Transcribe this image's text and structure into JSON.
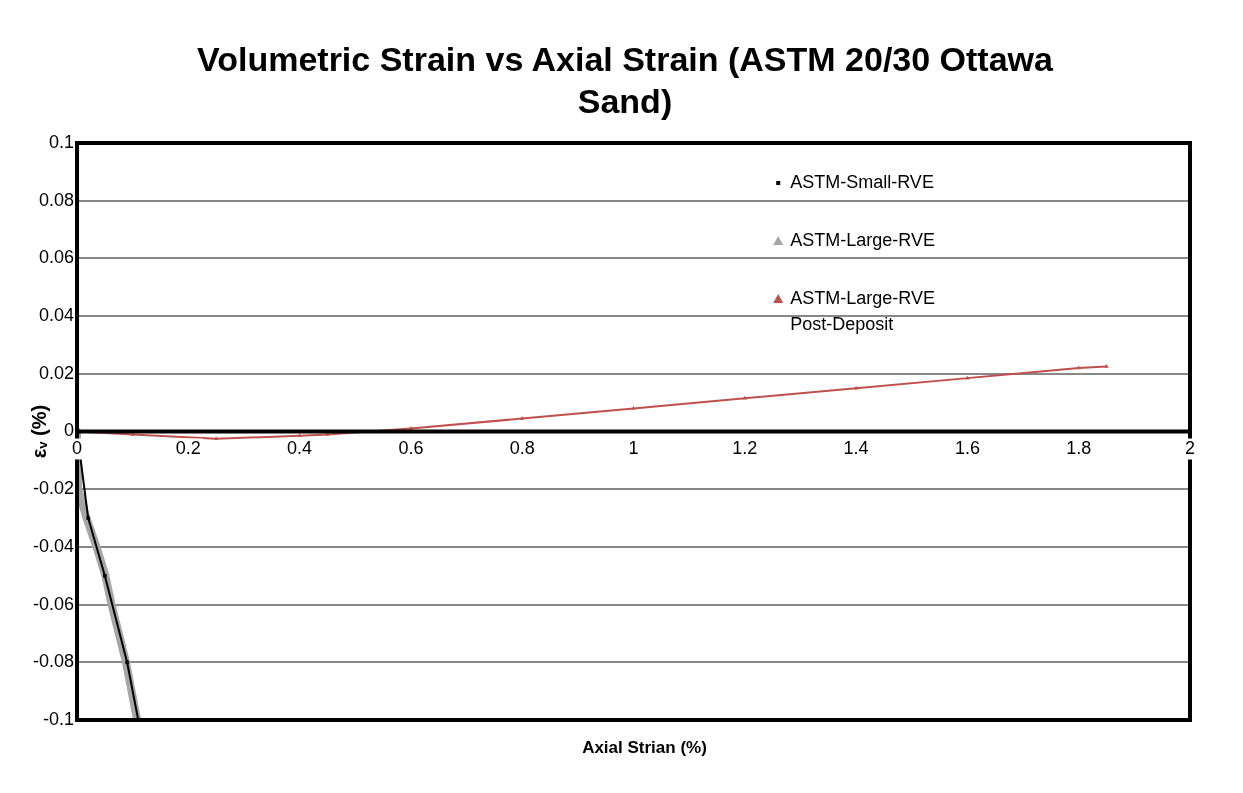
{
  "chart_data": {
    "type": "line",
    "title": "Volumetric Strain vs Axial Strain (ASTM 20/30 Ottawa Sand)",
    "xlabel": "Axial Strian (%)",
    "ylabel": "εᵥ (%)",
    "xlim": [
      0,
      2
    ],
    "xticks": [
      0,
      0.2,
      0.4,
      0.6,
      0.8,
      1,
      1.2,
      1.4,
      1.6,
      1.8,
      2
    ],
    "ylim": [
      -0.1,
      0.1
    ],
    "yticks": [
      -0.1,
      -0.08,
      -0.06,
      -0.04,
      -0.02,
      0,
      0.02,
      0.04,
      0.06,
      0.08,
      0.1
    ],
    "grid": "y",
    "legend": "top right",
    "marker": "triangle",
    "series": [
      {
        "name": "ASTM-Small-RVE",
        "color": "#000000",
        "marker": "square",
        "x": [
          0,
          0.02,
          0.05,
          0.09,
          0.11
        ],
        "values": [
          0,
          -0.03,
          -0.05,
          -0.08,
          -0.1
        ]
      },
      {
        "name": "ASTM-Large-RVE",
        "color": "#a6a6a6",
        "x": [
          0,
          0.002,
          0.017,
          0.035,
          0.051,
          0.062,
          0.088,
          0.108
        ],
        "values": [
          0,
          -0.02,
          -0.03,
          -0.04,
          -0.05,
          -0.06,
          -0.08,
          -0.1
        ]
      },
      {
        "name": "ASTM-Large-RVE Post-Deposit",
        "color": "#c0504d",
        "x": [
          0,
          0.1,
          0.25,
          0.4,
          0.45,
          0.6,
          0.8,
          1,
          1.2,
          1.4,
          1.6,
          1.8,
          1.85
        ],
        "values": [
          0,
          -0.001,
          -0.0025,
          -0.0015,
          -0.001,
          0.001,
          0.0045,
          0.008,
          0.0115,
          0.015,
          0.0185,
          0.022,
          0.0225
        ]
      }
    ]
  }
}
